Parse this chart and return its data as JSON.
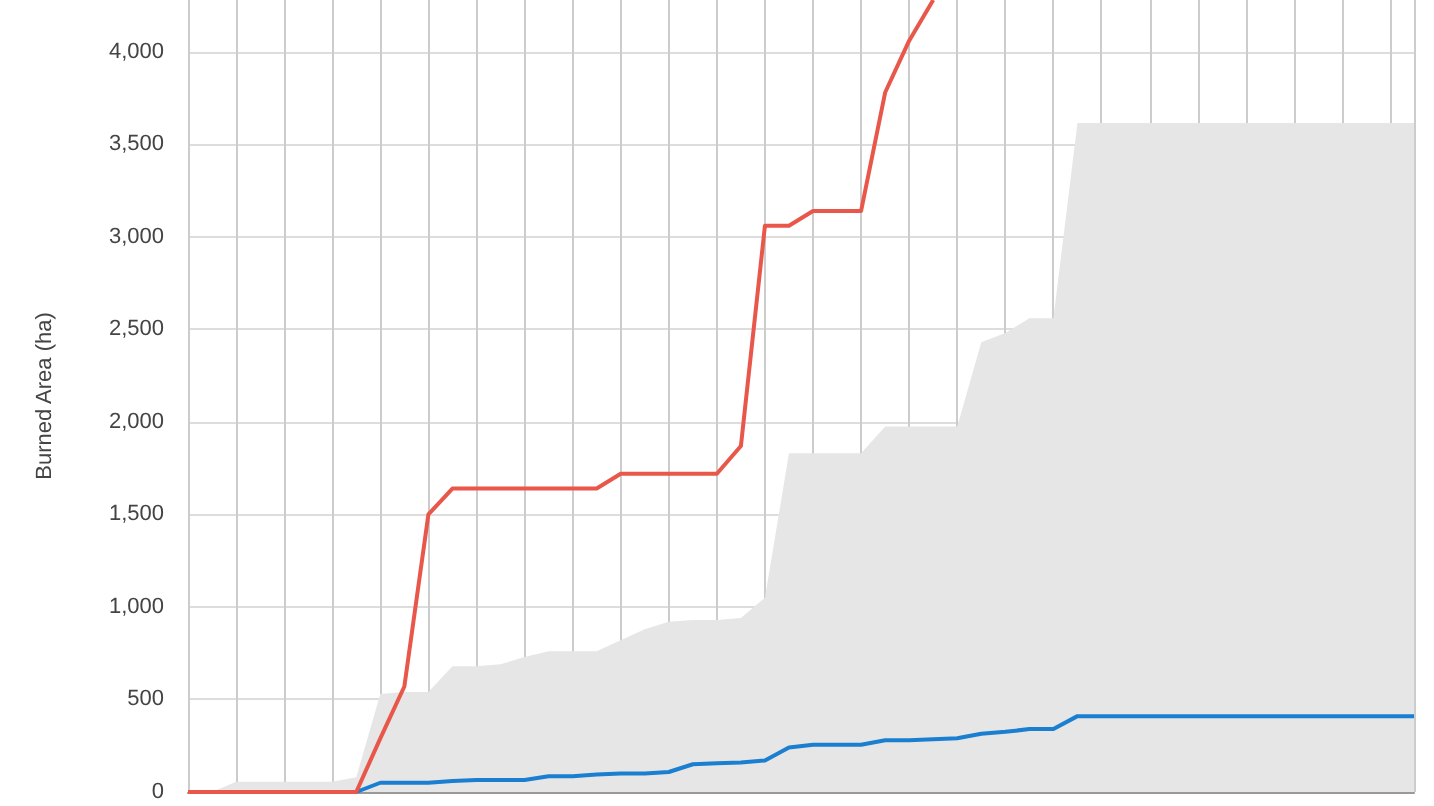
{
  "chart_data": {
    "type": "line",
    "ylabel": "Burned Area (ha)",
    "categories": [
      null,
      null,
      null,
      null,
      null,
      null,
      null,
      null,
      null,
      null,
      null,
      null,
      null,
      null,
      null,
      null,
      null,
      null,
      null,
      null,
      null,
      null,
      null,
      null,
      null,
      null,
      null,
      null,
      null,
      null,
      null,
      null,
      null,
      null,
      null,
      null,
      null,
      null,
      null,
      null,
      null,
      null,
      null,
      null,
      null,
      null,
      null,
      null,
      null,
      null,
      null,
      null
    ],
    "series": [
      {
        "type": "area",
        "color": "#e6e6e6",
        "values": [
          0,
          0,
          55,
          55,
          55,
          55,
          55,
          80,
          530,
          540,
          540,
          680,
          680,
          690,
          730,
          760,
          760,
          760,
          820,
          880,
          920,
          930,
          930,
          940,
          1050,
          1830,
          1830,
          1830,
          1830,
          1975,
          1975,
          1975,
          1975,
          2430,
          2480,
          2560,
          2560,
          3615,
          3615,
          3615,
          3615,
          3615,
          3615,
          3615,
          3615,
          3615,
          3615,
          3615,
          3615,
          3615,
          3615,
          3615
        ]
      },
      {
        "color": "#1a7fd0",
        "values": [
          null,
          null,
          null,
          null,
          null,
          null,
          null,
          0,
          50,
          50,
          50,
          60,
          65,
          65,
          65,
          85,
          85,
          95,
          100,
          100,
          108,
          150,
          155,
          160,
          170,
          240,
          255,
          255,
          255,
          280,
          280,
          285,
          290,
          315,
          325,
          340,
          340,
          410,
          410,
          410,
          410,
          410,
          410,
          410,
          410,
          410,
          410,
          410,
          410,
          410,
          410,
          410
        ]
      },
      {
        "color": "#e8574a",
        "values": [
          0,
          0,
          0,
          0,
          0,
          0,
          0,
          0,
          290,
          570,
          1500,
          1640,
          1640,
          1640,
          1640,
          1640,
          1640,
          1640,
          1720,
          1720,
          1720,
          1720,
          1720,
          1870,
          3060,
          3060,
          3140,
          3140,
          3140,
          3780,
          4060,
          4280,
          null,
          null,
          null,
          null,
          null,
          null,
          null,
          null,
          null,
          null,
          null,
          null,
          null,
          null,
          null,
          null,
          null,
          null,
          null,
          null
        ]
      }
    ],
    "ylim": [
      0,
      4280
    ],
    "yticks": [
      0,
      500,
      {
        "value": 1000,
        "label": "1,000"
      },
      {
        "value": 1500,
        "label": "1,500"
      },
      {
        "value": 2000,
        "label": "2,000"
      },
      {
        "value": 2500,
        "label": "2,500"
      },
      {
        "value": 3000,
        "label": "3,000"
      },
      {
        "value": 3500,
        "label": "3,500"
      },
      {
        "value": 4000,
        "label": "4,000"
      }
    ],
    "grid": true,
    "tick_labels": "y",
    "marker": "none"
  }
}
